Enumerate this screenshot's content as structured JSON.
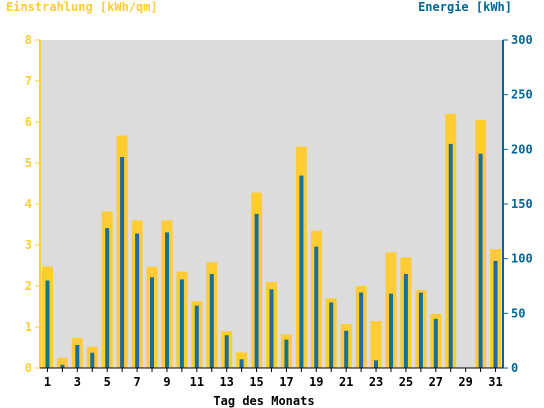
{
  "chart_data": {
    "type": "bar",
    "left_axis_title": "Einstrahlung [kWh/qm]",
    "right_axis_title": "Energie [kWh]",
    "xlabel": "Tag des Monats",
    "x_tick_labels": [
      "1",
      "3",
      "5",
      "7",
      "9",
      "11",
      "13",
      "15",
      "17",
      "19",
      "21",
      "23",
      "25",
      "27",
      "29",
      "31"
    ],
    "left_ylim": [
      0,
      8
    ],
    "left_ticks": [
      "0",
      "1",
      "2",
      "3",
      "4",
      "5",
      "6",
      "7",
      "8"
    ],
    "right_ylim": [
      0,
      300
    ],
    "right_ticks": [
      "0",
      "50",
      "100",
      "150",
      "200",
      "250",
      "300"
    ],
    "days": [
      1,
      2,
      3,
      4,
      5,
      6,
      7,
      8,
      9,
      10,
      11,
      12,
      13,
      14,
      15,
      16,
      17,
      18,
      19,
      20,
      21,
      22,
      23,
      24,
      25,
      26,
      27,
      28,
      29,
      30,
      31
    ],
    "series": [
      {
        "name": "Einstrahlung [kWh/qm]",
        "axis": "left",
        "values": [
          2.47,
          0.25,
          0.73,
          0.52,
          3.82,
          5.67,
          3.6,
          2.47,
          3.6,
          2.35,
          1.63,
          2.58,
          0.9,
          0.38,
          4.28,
          2.1,
          0.82,
          5.4,
          3.35,
          1.7,
          1.07,
          2.0,
          1.15,
          2.82,
          2.7,
          1.9,
          1.32,
          6.2,
          0.0,
          6.05,
          2.9
        ]
      },
      {
        "name": "Energie [kWh]",
        "axis": "right",
        "values": [
          80,
          3,
          21,
          14,
          128,
          193,
          123,
          83,
          124,
          81,
          57,
          86,
          30,
          8,
          141,
          72,
          26,
          176,
          111,
          60,
          34,
          69,
          7,
          68,
          86,
          69,
          45,
          205,
          0,
          196,
          98
        ]
      }
    ],
    "grid": false,
    "colors": {
      "irradiation_bar": "#ffcc33",
      "energy_bar": "#1a6e99",
      "plot_background": "#dcdcdc",
      "left_axis": "#ffcc33",
      "right_axis": "#006699",
      "x_axis_text": "#000000"
    }
  }
}
